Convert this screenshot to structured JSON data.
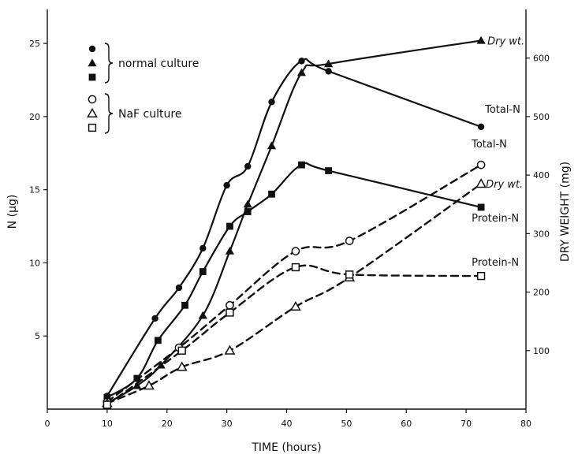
{
  "chart_data": {
    "type": "line",
    "xlabel": "TIME (hours)",
    "ylabel_left": "N (μg)",
    "ylabel_right": "DRY WEIGHT (mg)",
    "xlim": [
      0,
      80
    ],
    "ylim_left": [
      0,
      27
    ],
    "ylim_right": [
      0,
      675
    ],
    "x_ticks": [
      0,
      10,
      20,
      30,
      40,
      50,
      60,
      70,
      80
    ],
    "y_left_ticks": [
      5,
      10,
      15,
      20,
      25
    ],
    "y_right_ticks": [
      100,
      200,
      300,
      400,
      500,
      600
    ],
    "grid": false,
    "legend": {
      "placement": "top-left",
      "groups": [
        {
          "label": "normal culture",
          "markers": [
            "filled-circle",
            "filled-triangle",
            "filled-square"
          ]
        },
        {
          "label": "NaF culture",
          "markers": [
            "open-circle",
            "open-triangle",
            "open-square"
          ]
        }
      ]
    },
    "series": [
      {
        "name": "Total-N",
        "group": "normal culture",
        "axis": "left",
        "marker": "filled-circle",
        "style": "solid",
        "x": [
          10,
          18,
          22,
          26,
          30,
          33.5,
          37.5,
          42.5,
          47,
          72.5
        ],
        "y": [
          0.9,
          6.2,
          8.3,
          11,
          15.3,
          16.6,
          21,
          23.8,
          23.1,
          19.3
        ]
      },
      {
        "name": "Dry wt.",
        "group": "normal culture",
        "axis": "right",
        "marker": "filled-triangle",
        "style": "solid",
        "x": [
          10,
          15,
          19,
          26,
          30.5,
          33.5,
          37.5,
          42.5,
          47,
          72.5
        ],
        "y": [
          10,
          40,
          75,
          160,
          270,
          350,
          450,
          575,
          590,
          630
        ]
      },
      {
        "name": "Protein-N",
        "group": "normal culture",
        "axis": "left",
        "marker": "filled-square",
        "style": "solid",
        "x": [
          10,
          15,
          18.5,
          23,
          26,
          30.5,
          33.5,
          37.5,
          42.5,
          47,
          72.5
        ],
        "y": [
          0.8,
          2.1,
          4.7,
          7.1,
          9.4,
          12.5,
          13.5,
          14.7,
          16.7,
          16.3,
          13.8
        ]
      },
      {
        "name": "Total-N",
        "group": "NaF culture",
        "axis": "left",
        "marker": "open-circle",
        "style": "dashed",
        "x": [
          10,
          22,
          30.5,
          41.5,
          50.5,
          72.5
        ],
        "y": [
          0.5,
          4.2,
          7.1,
          10.8,
          11.5,
          16.7
        ]
      },
      {
        "name": "Dry wt.",
        "group": "NaF culture",
        "axis": "right",
        "marker": "open-triangle",
        "style": "dashed",
        "x": [
          10,
          17,
          22.5,
          30.5,
          41.5,
          50.5,
          72.5
        ],
        "y": [
          10,
          40,
          72,
          100,
          175,
          225,
          385
        ]
      },
      {
        "name": "Protein-N",
        "group": "NaF culture",
        "axis": "left",
        "marker": "open-square",
        "style": "dashed",
        "x": [
          10,
          22.5,
          30.5,
          41.5,
          50.5,
          72.5
        ],
        "y": [
          0.3,
          4,
          6.6,
          9.7,
          9.2,
          9.1
        ]
      }
    ],
    "annotations": [
      {
        "text": "Dry wt.",
        "series": 1
      },
      {
        "text": "Total-N",
        "series": 0
      },
      {
        "text": "Total-N",
        "series": 3
      },
      {
        "text": "Dry wt.",
        "series": 4
      },
      {
        "text": "Protein-N",
        "series": 2
      },
      {
        "text": "Protein-N",
        "series": 5
      }
    ]
  }
}
